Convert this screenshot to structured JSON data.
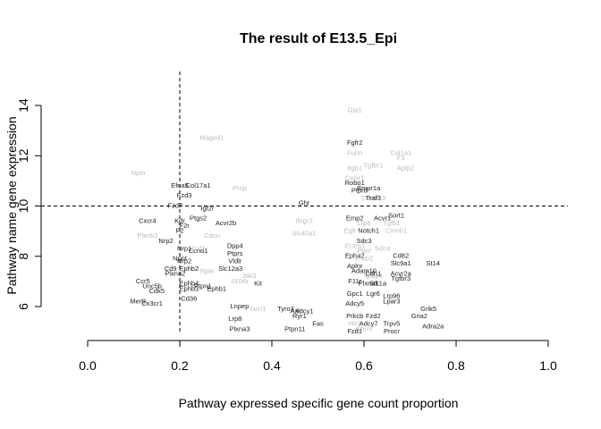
{
  "chart_data": {
    "type": "scatter",
    "title": "The result of E13.5_Epi",
    "xlabel": "Pathway expressed specific gene count proportion",
    "ylabel": "Pathway name gene expression",
    "xlim": [
      0.0,
      1.0
    ],
    "ylim": [
      4.7,
      14.5
    ],
    "xticks": [
      "0.0",
      "0.2",
      "0.4",
      "0.6",
      "0.8",
      "1.0"
    ],
    "yticks": [
      "6",
      "8",
      "10",
      "12",
      "14"
    ],
    "threshold_x": 0.2,
    "threshold_y": 10.0,
    "grid": false,
    "colors": {
      "dark": "#222222",
      "light": "#bbbbbb",
      "axis": "#000000"
    },
    "points": [
      {
        "label": "Gja1",
        "x": 0.58,
        "y": 13.8,
        "tone": "light"
      },
      {
        "label": "Fgfr2",
        "x": 0.58,
        "y": 12.5,
        "tone": "dark"
      },
      {
        "label": "Furin",
        "x": 0.58,
        "y": 12.1,
        "tone": "light"
      },
      {
        "label": "Col1a1",
        "x": 0.68,
        "y": 12.1,
        "tone": "light"
      },
      {
        "label": "F3",
        "x": 0.68,
        "y": 11.9,
        "tone": "light"
      },
      {
        "label": "Tgfbr1",
        "x": 0.62,
        "y": 11.6,
        "tone": "light"
      },
      {
        "label": "Itgb1",
        "x": 0.58,
        "y": 11.5,
        "tone": "light"
      },
      {
        "label": "Aplp2",
        "x": 0.69,
        "y": 11.5,
        "tone": "light"
      },
      {
        "label": "Celsr1",
        "x": 0.58,
        "y": 11.1,
        "tone": "light"
      },
      {
        "label": "Maged1",
        "x": 0.27,
        "y": 12.7,
        "tone": "light"
      },
      {
        "label": "Nptn",
        "x": 0.11,
        "y": 11.3,
        "tone": "light"
      },
      {
        "label": "Efna5",
        "x": 0.2,
        "y": 10.8,
        "tone": "dark"
      },
      {
        "label": "Col17a1",
        "x": 0.24,
        "y": 10.8,
        "tone": "dark"
      },
      {
        "label": "Fzd3",
        "x": 0.21,
        "y": 10.4,
        "tone": "dark"
      },
      {
        "label": "Prnp",
        "x": 0.33,
        "y": 10.7,
        "tone": "light"
      },
      {
        "label": "Robo1",
        "x": 0.58,
        "y": 10.9,
        "tone": "dark"
      },
      {
        "label": "Bmpr1a",
        "x": 0.61,
        "y": 10.7,
        "tone": "dark"
      },
      {
        "label": "Ptprd",
        "x": 0.59,
        "y": 10.6,
        "tone": "dark"
      },
      {
        "label": "Tnfrsf19",
        "x": 0.62,
        "y": 10.3,
        "tone": "light"
      },
      {
        "label": "Traf3",
        "x": 0.62,
        "y": 10.3,
        "tone": "dark"
      },
      {
        "label": "Ghr",
        "x": 0.47,
        "y": 10.1,
        "tone": "dark"
      },
      {
        "label": "Fzd7",
        "x": 0.19,
        "y": 10.0,
        "tone": "dark"
      },
      {
        "label": "Igf2r",
        "x": 0.26,
        "y": 9.9,
        "tone": "dark"
      },
      {
        "label": "Sort1",
        "x": 0.67,
        "y": 9.6,
        "tone": "dark"
      },
      {
        "label": "Acvr1",
        "x": 0.64,
        "y": 9.5,
        "tone": "dark"
      },
      {
        "label": "Emp2",
        "x": 0.58,
        "y": 9.5,
        "tone": "dark"
      },
      {
        "label": "Lrp6",
        "x": 0.6,
        "y": 9.3,
        "tone": "light"
      },
      {
        "label": "Tgfb1",
        "x": 0.66,
        "y": 9.3,
        "tone": "light"
      },
      {
        "label": "Notch1",
        "x": 0.61,
        "y": 9.0,
        "tone": "dark"
      },
      {
        "label": "Egfr",
        "x": 0.57,
        "y": 9.0,
        "tone": "light"
      },
      {
        "label": "Ifngr2",
        "x": 0.47,
        "y": 9.4,
        "tone": "light"
      },
      {
        "label": "Cxcr4",
        "x": 0.13,
        "y": 9.4,
        "tone": "dark"
      },
      {
        "label": "Kdr",
        "x": 0.2,
        "y": 9.4,
        "tone": "dark"
      },
      {
        "label": "Ptgs2",
        "x": 0.24,
        "y": 9.5,
        "tone": "dark"
      },
      {
        "label": "Acvr2b",
        "x": 0.3,
        "y": 9.3,
        "tone": "dark"
      },
      {
        "label": "F2r",
        "x": 0.21,
        "y": 9.2,
        "tone": "dark"
      },
      {
        "label": "F2",
        "x": 0.2,
        "y": 9.0,
        "tone": "dark"
      },
      {
        "label": "Slc40a1",
        "x": 0.47,
        "y": 8.9,
        "tone": "light"
      },
      {
        "label": "Ctnnb1",
        "x": 0.67,
        "y": 9.0,
        "tone": "light"
      },
      {
        "label": "Plxnb2",
        "x": 0.13,
        "y": 8.8,
        "tone": "light"
      },
      {
        "label": "Nrp2",
        "x": 0.17,
        "y": 8.6,
        "tone": "dark"
      },
      {
        "label": "Cdon",
        "x": 0.27,
        "y": 8.8,
        "tone": "light"
      },
      {
        "label": "Sdc3",
        "x": 0.6,
        "y": 8.6,
        "tone": "dark"
      },
      {
        "label": "Il13ra1",
        "x": 0.58,
        "y": 8.4,
        "tone": "light"
      },
      {
        "label": "Sdc4",
        "x": 0.64,
        "y": 8.3,
        "tone": "light"
      },
      {
        "label": "Ptprf",
        "x": 0.6,
        "y": 8.2,
        "tone": "light"
      },
      {
        "label": "Cd82",
        "x": 0.68,
        "y": 8.0,
        "tone": "dark"
      },
      {
        "label": "Slc9a1",
        "x": 0.68,
        "y": 7.7,
        "tone": "dark"
      },
      {
        "label": "St14",
        "x": 0.75,
        "y": 7.7,
        "tone": "dark"
      },
      {
        "label": "Acvr2a",
        "x": 0.68,
        "y": 7.3,
        "tone": "dark"
      },
      {
        "label": "Tgfbr3",
        "x": 0.68,
        "y": 7.1,
        "tone": "dark"
      },
      {
        "label": "Epha2",
        "x": 0.58,
        "y": 8.0,
        "tone": "dark"
      },
      {
        "label": "Erbb2",
        "x": 0.6,
        "y": 7.9,
        "tone": "light"
      },
      {
        "label": "Aplnr",
        "x": 0.58,
        "y": 7.6,
        "tone": "dark"
      },
      {
        "label": "Adam10",
        "x": 0.6,
        "y": 7.4,
        "tone": "dark"
      },
      {
        "label": "Igfbp4",
        "x": 0.62,
        "y": 7.2,
        "tone": "light"
      },
      {
        "label": "Plxna1",
        "x": 0.61,
        "y": 6.9,
        "tone": "dark"
      },
      {
        "label": "F11r",
        "x": 0.58,
        "y": 7.0,
        "tone": "dark"
      },
      {
        "label": "Stk1a",
        "x": 0.63,
        "y": 6.9,
        "tone": "dark"
      },
      {
        "label": "Cdh1",
        "x": 0.62,
        "y": 7.3,
        "tone": "dark"
      },
      {
        "label": "Nrp1",
        "x": 0.21,
        "y": 8.3,
        "tone": "dark"
      },
      {
        "label": "Ccnd1",
        "x": 0.24,
        "y": 8.2,
        "tone": "dark"
      },
      {
        "label": "Csf1",
        "x": 0.24,
        "y": 8.3,
        "tone": "light"
      },
      {
        "label": "Dpp4",
        "x": 0.32,
        "y": 8.4,
        "tone": "dark"
      },
      {
        "label": "Ptprs",
        "x": 0.32,
        "y": 8.1,
        "tone": "dark"
      },
      {
        "label": "Npnt",
        "x": 0.2,
        "y": 7.9,
        "tone": "dark"
      },
      {
        "label": "Vldlr",
        "x": 0.32,
        "y": 7.8,
        "tone": "dark"
      },
      {
        "label": "Nrp2",
        "x": 0.21,
        "y": 7.8,
        "tone": "dark"
      },
      {
        "label": "Ephb2",
        "x": 0.22,
        "y": 7.5,
        "tone": "dark"
      },
      {
        "label": "Cd9",
        "x": 0.18,
        "y": 7.5,
        "tone": "dark"
      },
      {
        "label": "Slc12a3",
        "x": 0.31,
        "y": 7.5,
        "tone": "dark"
      },
      {
        "label": "Plxna2",
        "x": 0.19,
        "y": 7.3,
        "tone": "dark"
      },
      {
        "label": "Itgav",
        "x": 0.26,
        "y": 7.4,
        "tone": "light"
      },
      {
        "label": "Ccr5",
        "x": 0.12,
        "y": 7.0,
        "tone": "dark"
      },
      {
        "label": "Ephb4",
        "x": 0.22,
        "y": 6.9,
        "tone": "dark"
      },
      {
        "label": "Ptpn1",
        "x": 0.25,
        "y": 6.8,
        "tone": "dark"
      },
      {
        "label": "Cdk5",
        "x": 0.15,
        "y": 6.6,
        "tone": "dark"
      },
      {
        "label": "Unc5b",
        "x": 0.14,
        "y": 6.8,
        "tone": "dark"
      },
      {
        "label": "Ephb3",
        "x": 0.22,
        "y": 6.7,
        "tone": "dark"
      },
      {
        "label": "Ephb1",
        "x": 0.28,
        "y": 6.7,
        "tone": "dark"
      },
      {
        "label": "Kit",
        "x": 0.37,
        "y": 6.9,
        "tone": "dark"
      },
      {
        "label": "Il10rb",
        "x": 0.33,
        "y": 7.0,
        "tone": "light"
      },
      {
        "label": "Jak3",
        "x": 0.35,
        "y": 7.2,
        "tone": "light"
      },
      {
        "label": "Mertk",
        "x": 0.11,
        "y": 6.2,
        "tone": "dark"
      },
      {
        "label": "Cx3cr1",
        "x": 0.14,
        "y": 6.1,
        "tone": "dark"
      },
      {
        "label": "Cd36",
        "x": 0.22,
        "y": 6.3,
        "tone": "dark"
      },
      {
        "label": "Lnpep",
        "x": 0.33,
        "y": 6.0,
        "tone": "dark"
      },
      {
        "label": "Nrcl1",
        "x": 0.37,
        "y": 5.9,
        "tone": "light"
      },
      {
        "label": "Tyro3",
        "x": 0.43,
        "y": 5.9,
        "tone": "dark"
      },
      {
        "label": "Axl",
        "x": 0.45,
        "y": 5.8,
        "tone": "dark"
      },
      {
        "label": "Adcy1",
        "x": 0.47,
        "y": 5.8,
        "tone": "dark"
      },
      {
        "label": "Ryr1",
        "x": 0.46,
        "y": 5.6,
        "tone": "dark"
      },
      {
        "label": "Lrp8",
        "x": 0.32,
        "y": 5.5,
        "tone": "dark"
      },
      {
        "label": "Plxna3",
        "x": 0.33,
        "y": 5.1,
        "tone": "dark"
      },
      {
        "label": "Fas",
        "x": 0.5,
        "y": 5.3,
        "tone": "dark"
      },
      {
        "label": "Ptpn11",
        "x": 0.45,
        "y": 5.1,
        "tone": "dark"
      },
      {
        "label": "Gpc1",
        "x": 0.58,
        "y": 6.5,
        "tone": "dark"
      },
      {
        "label": "Lgr6",
        "x": 0.62,
        "y": 6.5,
        "tone": "dark"
      },
      {
        "label": "Lrp96",
        "x": 0.66,
        "y": 6.4,
        "tone": "dark"
      },
      {
        "label": "Lpar3",
        "x": 0.66,
        "y": 6.2,
        "tone": "dark"
      },
      {
        "label": "Adcy5",
        "x": 0.58,
        "y": 6.1,
        "tone": "dark"
      },
      {
        "label": "Grik5",
        "x": 0.74,
        "y": 5.9,
        "tone": "dark"
      },
      {
        "label": "Gria2",
        "x": 0.72,
        "y": 5.6,
        "tone": "dark"
      },
      {
        "label": "Adra2a",
        "x": 0.75,
        "y": 5.2,
        "tone": "dark"
      },
      {
        "label": "Prkcb",
        "x": 0.58,
        "y": 5.6,
        "tone": "dark"
      },
      {
        "label": "Fzd2",
        "x": 0.62,
        "y": 5.6,
        "tone": "dark"
      },
      {
        "label": "Adcy7",
        "x": 0.61,
        "y": 5.3,
        "tone": "dark"
      },
      {
        "label": "Trpv5",
        "x": 0.66,
        "y": 5.3,
        "tone": "dark"
      },
      {
        "label": "Procr",
        "x": 0.66,
        "y": 5.0,
        "tone": "dark"
      },
      {
        "label": "Htr1",
        "x": 0.58,
        "y": 5.3,
        "tone": "light"
      },
      {
        "label": "Chrm",
        "x": 0.6,
        "y": 5.1,
        "tone": "light"
      },
      {
        "label": "Fzd1",
        "x": 0.58,
        "y": 5.0,
        "tone": "dark"
      }
    ]
  }
}
